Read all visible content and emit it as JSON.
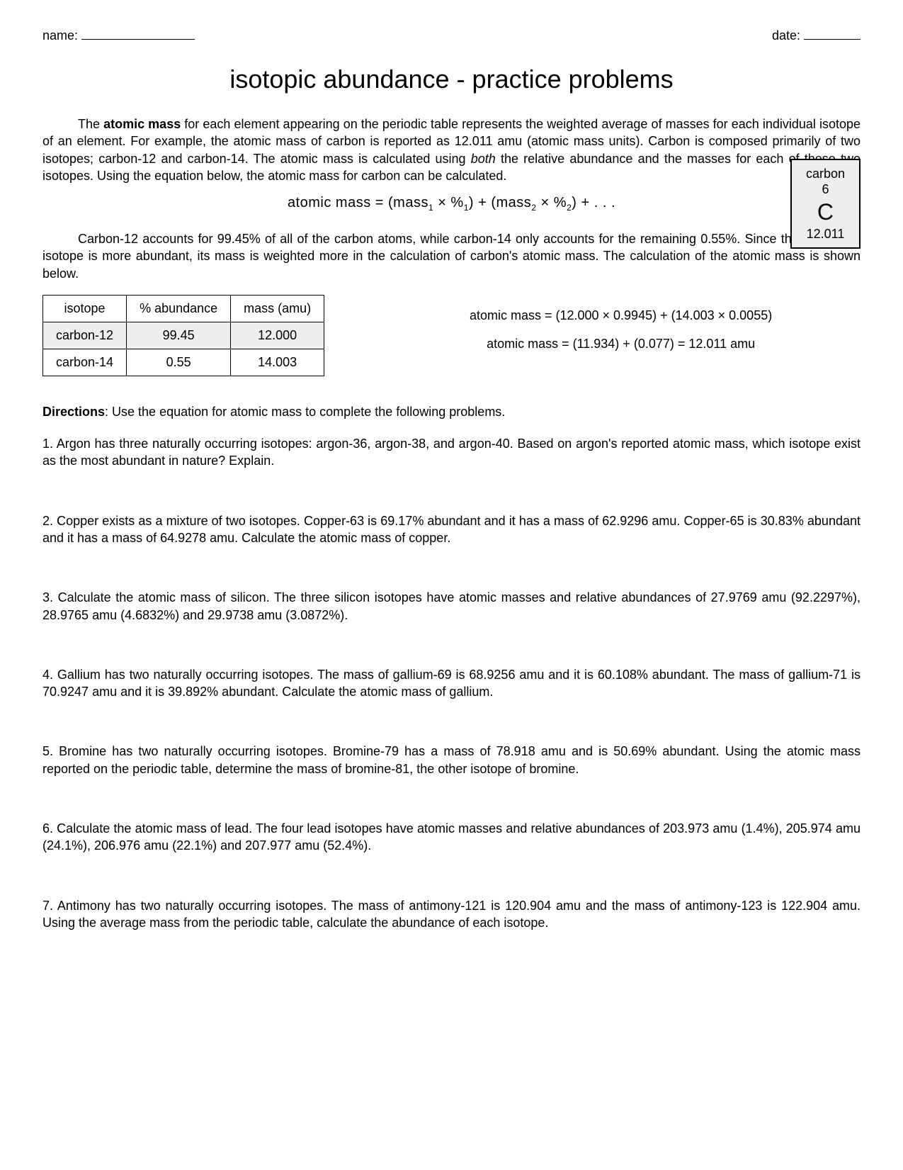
{
  "header": {
    "name_label": "name:",
    "date_label": "date:"
  },
  "title": "isotopic abundance - practice problems",
  "intro_html": "<span class=\"indent\"></span>The <span class=\"bold\">atomic mass</span> for each element appearing on the periodic table represents the weighted average of masses for each individual isotope of an element. For example, the atomic mass of carbon is reported as 12.011 amu (atomic mass units). Carbon is composed primarily of two isotopes; carbon-12 and carbon-14. The atomic mass is calculated using <span class=\"italic\">both</span> the relative abundance and the masses for each of these two isotopes. Using the equation below, the atomic mass for carbon can be calculated.",
  "equation_html": "atomic mass = (mass<sub>1</sub> &times; %<sub>1</sub>) + (mass<sub>2</sub> &times; %<sub>2</sub>) + . . .",
  "element_box": {
    "name": "carbon",
    "number": "6",
    "symbol": "C",
    "mass": "12.011"
  },
  "para2_html": "<span class=\"indent\"></span>Carbon-12 accounts for 99.45% of all of the carbon atoms, while carbon-14 only accounts for the remaining 0.55%. Since the carbon-12 isotope is more abundant, its mass is weighted more in the calculation of carbon's atomic mass. The calculation of the atomic mass is shown below.",
  "table": {
    "headers": [
      "isotope",
      "% abundance",
      "mass (amu)"
    ],
    "rows": [
      {
        "shaded": true,
        "cells": [
          "carbon-12",
          "99.45",
          "12.000"
        ]
      },
      {
        "shaded": false,
        "cells": [
          "carbon-14",
          "0.55",
          "14.003"
        ]
      }
    ]
  },
  "calc_lines": [
    "atomic mass = (12.000 × 0.9945) + (14.003 × 0.0055)",
    "atomic mass = (11.934) + (0.077) = 12.011 amu"
  ],
  "directions_html": "<span class=\"bold\">Directions</span>: Use the equation for atomic mass to complete the following problems.",
  "problems": [
    "1. Argon has three naturally occurring isotopes: argon-36, argon-38, and argon-40. Based on argon's reported atomic mass, which isotope exist as the most abundant in nature? Explain.",
    "2. Copper exists as a mixture of two isotopes. Copper-63 is 69.17% abundant and it has a mass of 62.9296 amu. Copper-65 is 30.83% abundant and it has a mass of 64.9278 amu. Calculate the atomic mass of copper.",
    "3. Calculate the atomic mass of silicon. The three silicon isotopes have atomic masses and relative abundances of 27.9769 amu (92.2297%), 28.9765 amu (4.6832%) and 29.9738 amu (3.0872%).",
    "4. Gallium has two naturally occurring isotopes. The mass of gallium-69 is 68.9256 amu and it is 60.108% abundant. The mass of gallium-71 is 70.9247 amu and it is 39.892% abundant. Calculate the atomic mass of gallium.",
    "5. Bromine has two naturally occurring isotopes. Bromine-79 has a mass of 78.918 amu and is 50.69% abundant. Using the atomic mass reported on the periodic table, determine the mass of bromine-81, the other isotope of bromine.",
    "6. Calculate the atomic mass of lead. The four lead isotopes have atomic masses and relative abundances of 203.973 amu (1.4%), 205.974 amu (24.1%), 206.976 amu (22.1%) and 207.977 amu (52.4%).",
    "7. Antimony has two naturally occurring isotopes. The mass of antimony-121 is 120.904 amu and the mass of antimony-123 is 122.904 amu. Using the average mass from the periodic table, calculate the abundance of each isotope."
  ]
}
